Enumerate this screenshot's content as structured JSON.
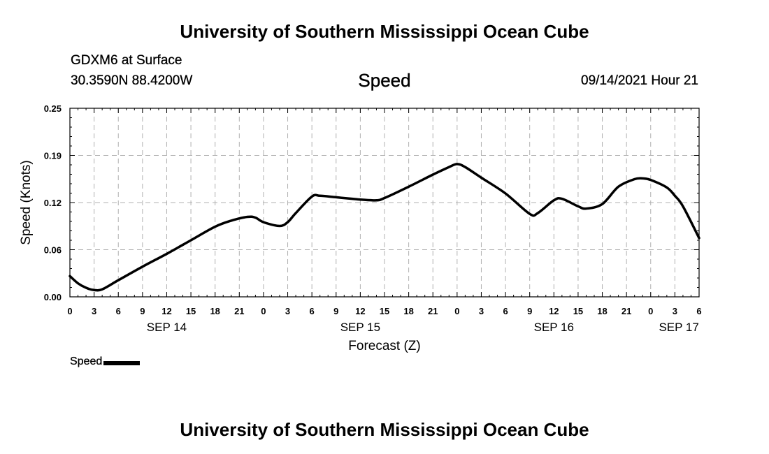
{
  "header": {
    "title": "University of Southern Mississippi Ocean Cube",
    "station": "GDXM6 at Surface",
    "coords": "30.3590N  88.4200W",
    "variable": "Speed",
    "datetime": "09/14/2021 Hour 21"
  },
  "footer": {
    "title": "University of Southern Mississippi Ocean Cube"
  },
  "chart_data": {
    "type": "line",
    "title": "Speed",
    "xlabel": "Forecast (Z)",
    "ylabel": "Speed (Knots)",
    "ylim": [
      0,
      0.25
    ],
    "xlim": [
      0,
      78
    ],
    "grid": true,
    "y_ticks": [
      {
        "value": 0.0,
        "label": "0.00"
      },
      {
        "value": 0.0625,
        "label": "0.06"
      },
      {
        "value": 0.125,
        "label": "0.12"
      },
      {
        "value": 0.1875,
        "label": "0.19"
      },
      {
        "value": 0.25,
        "label": "0.25"
      }
    ],
    "x_ticks": [
      {
        "value": 0,
        "label": "0"
      },
      {
        "value": 3,
        "label": "3"
      },
      {
        "value": 6,
        "label": "6"
      },
      {
        "value": 9,
        "label": "9"
      },
      {
        "value": 12,
        "label": "12"
      },
      {
        "value": 15,
        "label": "15"
      },
      {
        "value": 18,
        "label": "18"
      },
      {
        "value": 21,
        "label": "21"
      },
      {
        "value": 24,
        "label": "0"
      },
      {
        "value": 27,
        "label": "3"
      },
      {
        "value": 30,
        "label": "6"
      },
      {
        "value": 33,
        "label": "9"
      },
      {
        "value": 36,
        "label": "12"
      },
      {
        "value": 39,
        "label": "15"
      },
      {
        "value": 42,
        "label": "18"
      },
      {
        "value": 45,
        "label": "21"
      },
      {
        "value": 48,
        "label": "0"
      },
      {
        "value": 51,
        "label": "3"
      },
      {
        "value": 54,
        "label": "6"
      },
      {
        "value": 57,
        "label": "9"
      },
      {
        "value": 60,
        "label": "12"
      },
      {
        "value": 63,
        "label": "15"
      },
      {
        "value": 66,
        "label": "18"
      },
      {
        "value": 69,
        "label": "21"
      },
      {
        "value": 72,
        "label": "0"
      },
      {
        "value": 75,
        "label": "3"
      },
      {
        "value": 78,
        "label": "6"
      }
    ],
    "date_labels": [
      {
        "value": 12,
        "label": "SEP 14"
      },
      {
        "value": 36,
        "label": "SEP 15"
      },
      {
        "value": 60,
        "label": "SEP 16"
      },
      {
        "value": 75.5,
        "label": "SEP 17"
      }
    ],
    "legend": {
      "label": "Speed",
      "position": "bottom-left"
    },
    "series": [
      {
        "name": "Speed",
        "x": [
          0,
          1,
          2,
          3,
          4,
          6,
          9,
          12,
          15,
          18,
          20,
          22,
          23,
          24,
          26,
          27,
          28,
          30,
          31,
          33,
          35,
          36,
          38,
          39,
          42,
          45,
          47,
          48,
          49,
          51,
          54,
          57,
          58,
          60,
          61,
          63,
          64,
          66,
          68,
          70,
          71,
          72,
          74,
          75,
          76,
          78
        ],
        "y": [
          0.0275,
          0.018,
          0.012,
          0.009,
          0.01,
          0.022,
          0.04,
          0.057,
          0.075,
          0.093,
          0.101,
          0.106,
          0.105,
          0.099,
          0.094,
          0.099,
          0.111,
          0.133,
          0.134,
          0.132,
          0.13,
          0.129,
          0.128,
          0.131,
          0.146,
          0.162,
          0.172,
          0.176,
          0.172,
          0.158,
          0.137,
          0.11,
          0.111,
          0.128,
          0.13,
          0.12,
          0.117,
          0.123,
          0.146,
          0.156,
          0.157,
          0.155,
          0.145,
          0.134,
          0.12,
          0.078
        ]
      }
    ]
  }
}
